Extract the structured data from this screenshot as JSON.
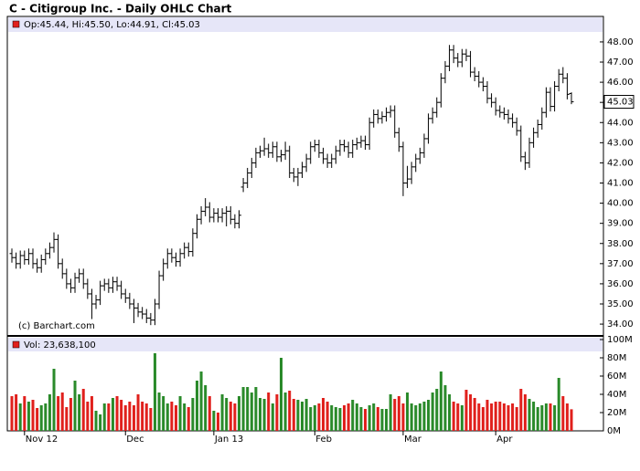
{
  "chart_data": {
    "type": "ohlc",
    "title": "C - Citigroup Inc. - Daily OHLC Chart",
    "legend": "Op:45.44, Hi:45.50, Lo:44.91, Cl:45.03",
    "volume_legend": "Vol: 23,638,100",
    "credit": "(c) Barchart.com",
    "categories": [
      null,
      null,
      null,
      "Nov 12",
      null,
      null,
      null,
      null,
      null,
      null,
      null,
      null,
      null,
      null,
      null,
      null,
      null,
      null,
      null,
      null,
      null,
      null,
      null,
      null,
      null,
      null,
      null,
      "Dec",
      null,
      null,
      null,
      null,
      null,
      null,
      null,
      null,
      null,
      null,
      null,
      null,
      null,
      null,
      null,
      null,
      null,
      null,
      null,
      null,
      "Jan 13",
      null,
      null,
      null,
      null,
      null,
      null,
      null,
      null,
      null,
      null,
      null,
      null,
      null,
      null,
      null,
      null,
      null,
      null,
      null,
      null,
      null,
      null,
      null,
      "Feb",
      null,
      null,
      null,
      null,
      null,
      null,
      null,
      null,
      null,
      null,
      null,
      null,
      null,
      null,
      null,
      null,
      null,
      null,
      null,
      null,
      "Mar",
      null,
      null,
      null,
      null,
      null,
      null,
      null,
      null,
      null,
      null,
      null,
      null,
      null,
      null,
      null,
      null,
      null,
      null,
      null,
      null,
      null,
      "Apr",
      null,
      null,
      null,
      null,
      null,
      null,
      null,
      null,
      null,
      null,
      null,
      null,
      null,
      null,
      null,
      null,
      null,
      null
    ],
    "bars": [
      [
        37.5,
        37.75,
        37.05,
        37.3
      ],
      [
        37.3,
        37.55,
        36.75,
        37.0
      ],
      [
        37.0,
        37.65,
        36.75,
        37.4
      ],
      [
        37.4,
        37.65,
        36.95,
        37.2
      ],
      [
        37.2,
        37.75,
        36.95,
        37.5
      ],
      [
        37.5,
        37.75,
        36.75,
        37.0
      ],
      [
        37.0,
        37.25,
        36.55,
        36.8
      ],
      [
        36.8,
        37.45,
        36.55,
        37.2
      ],
      [
        37.2,
        37.75,
        36.95,
        37.5
      ],
      [
        37.5,
        38.05,
        37.25,
        37.8
      ],
      [
        37.8,
        38.55,
        37.55,
        38.2
      ],
      [
        38.2,
        38.45,
        36.75,
        37.0
      ],
      [
        37.0,
        37.25,
        36.25,
        36.5
      ],
      [
        36.5,
        36.75,
        35.75,
        36.0
      ],
      [
        36.0,
        36.25,
        35.55,
        35.8
      ],
      [
        35.8,
        36.55,
        35.55,
        36.3
      ],
      [
        36.3,
        36.75,
        36.05,
        36.5
      ],
      [
        36.5,
        36.75,
        35.75,
        36.0
      ],
      [
        36.0,
        36.25,
        35.25,
        35.5
      ],
      [
        35.5,
        35.75,
        34.25,
        35.0
      ],
      [
        35.0,
        35.45,
        34.75,
        35.2
      ],
      [
        35.2,
        36.15,
        34.95,
        35.9
      ],
      [
        35.9,
        36.25,
        35.65,
        36.0
      ],
      [
        36.0,
        36.25,
        35.55,
        35.8
      ],
      [
        35.8,
        36.35,
        35.55,
        36.1
      ],
      [
        36.1,
        36.35,
        35.65,
        35.9
      ],
      [
        35.9,
        36.15,
        35.25,
        35.5
      ],
      [
        35.5,
        35.75,
        35.05,
        35.3
      ],
      [
        35.3,
        35.55,
        34.75,
        35.0
      ],
      [
        35.0,
        35.25,
        34.05,
        34.8
      ],
      [
        34.8,
        35.05,
        34.35,
        34.6
      ],
      [
        34.6,
        34.85,
        34.25,
        34.5
      ],
      [
        34.5,
        34.75,
        34.05,
        34.3
      ],
      [
        34.3,
        34.55,
        33.95,
        34.2
      ],
      [
        34.2,
        35.25,
        33.95,
        35.0
      ],
      [
        35.0,
        36.65,
        34.75,
        36.4
      ],
      [
        36.4,
        37.25,
        36.15,
        37.0
      ],
      [
        37.0,
        37.75,
        36.75,
        37.5
      ],
      [
        37.5,
        37.75,
        37.05,
        37.3
      ],
      [
        37.3,
        37.55,
        36.85,
        37.1
      ],
      [
        37.1,
        37.75,
        36.85,
        37.5
      ],
      [
        37.5,
        38.05,
        37.25,
        37.8
      ],
      [
        37.8,
        38.05,
        37.35,
        37.6
      ],
      [
        37.6,
        38.75,
        37.35,
        38.5
      ],
      [
        38.5,
        39.45,
        38.25,
        39.2
      ],
      [
        39.2,
        39.85,
        38.95,
        39.6
      ],
      [
        39.6,
        40.25,
        39.35,
        39.8
      ],
      [
        39.8,
        40.05,
        39.05,
        39.3
      ],
      [
        39.3,
        39.75,
        39.05,
        39.5
      ],
      [
        39.5,
        39.75,
        39.05,
        39.3
      ],
      [
        39.3,
        39.75,
        39.05,
        39.5
      ],
      [
        39.5,
        39.85,
        38.85,
        39.6
      ],
      [
        39.6,
        39.85,
        38.95,
        39.2
      ],
      [
        39.2,
        39.45,
        38.75,
        39.0
      ],
      [
        39.0,
        39.65,
        38.75,
        39.4
      ],
      [
        40.8,
        41.25,
        40.55,
        41.0
      ],
      [
        41.0,
        41.75,
        40.75,
        41.5
      ],
      [
        41.5,
        42.25,
        41.25,
        42.0
      ],
      [
        42.0,
        42.75,
        41.75,
        42.5
      ],
      [
        42.5,
        42.85,
        42.25,
        42.6
      ],
      [
        42.6,
        43.25,
        42.35,
        42.7
      ],
      [
        42.7,
        42.95,
        42.25,
        42.5
      ],
      [
        42.5,
        43.05,
        42.25,
        42.8
      ],
      [
        42.8,
        43.05,
        42.05,
        42.3
      ],
      [
        42.3,
        42.65,
        42.05,
        42.4
      ],
      [
        42.4,
        43.05,
        42.15,
        42.6
      ],
      [
        42.6,
        42.85,
        41.25,
        41.5
      ],
      [
        41.5,
        41.75,
        41.05,
        41.3
      ],
      [
        41.3,
        41.75,
        40.85,
        41.5
      ],
      [
        41.5,
        42.05,
        41.25,
        41.8
      ],
      [
        41.8,
        42.45,
        41.55,
        42.2
      ],
      [
        42.2,
        43.05,
        41.95,
        42.8
      ],
      [
        42.8,
        43.15,
        42.55,
        42.9
      ],
      [
        42.9,
        43.15,
        42.25,
        42.5
      ],
      [
        42.5,
        42.75,
        41.95,
        42.2
      ],
      [
        42.2,
        42.45,
        41.75,
        42.0
      ],
      [
        42.0,
        42.45,
        41.75,
        42.2
      ],
      [
        42.2,
        42.85,
        41.95,
        42.6
      ],
      [
        42.6,
        43.15,
        42.35,
        42.9
      ],
      [
        42.9,
        43.15,
        42.55,
        42.8
      ],
      [
        42.8,
        43.05,
        42.25,
        42.5
      ],
      [
        42.5,
        43.15,
        42.25,
        42.9
      ],
      [
        42.9,
        43.25,
        42.65,
        43.0
      ],
      [
        43.0,
        43.35,
        42.75,
        43.1
      ],
      [
        43.1,
        43.35,
        42.65,
        42.9
      ],
      [
        42.9,
        44.25,
        42.65,
        44.0
      ],
      [
        44.0,
        44.65,
        43.75,
        44.4
      ],
      [
        44.4,
        44.65,
        43.95,
        44.2
      ],
      [
        44.2,
        44.55,
        43.95,
        44.3
      ],
      [
        44.3,
        44.75,
        44.05,
        44.5
      ],
      [
        44.5,
        44.85,
        44.25,
        44.6
      ],
      [
        44.6,
        44.85,
        43.25,
        43.5
      ],
      [
        43.5,
        43.75,
        42.55,
        42.8
      ],
      [
        42.8,
        43.05,
        40.35,
        41.0
      ],
      [
        41.0,
        41.85,
        40.75,
        41.2
      ],
      [
        41.2,
        42.05,
        40.95,
        41.8
      ],
      [
        41.8,
        42.45,
        41.55,
        42.2
      ],
      [
        42.2,
        42.75,
        41.95,
        42.5
      ],
      [
        42.5,
        43.45,
        42.25,
        43.2
      ],
      [
        43.2,
        44.45,
        42.95,
        44.2
      ],
      [
        44.2,
        44.75,
        43.95,
        44.5
      ],
      [
        44.5,
        45.25,
        44.25,
        45.0
      ],
      [
        45.0,
        46.45,
        44.75,
        46.2
      ],
      [
        46.2,
        47.05,
        45.95,
        46.8
      ],
      [
        46.8,
        47.85,
        46.55,
        47.6
      ],
      [
        47.6,
        47.85,
        46.95,
        47.2
      ],
      [
        47.2,
        47.45,
        46.75,
        47.0
      ],
      [
        47.0,
        47.65,
        46.75,
        47.4
      ],
      [
        47.4,
        47.65,
        47.05,
        47.3
      ],
      [
        47.3,
        47.55,
        46.25,
        46.5
      ],
      [
        46.5,
        46.75,
        46.05,
        46.3
      ],
      [
        46.3,
        46.55,
        45.75,
        46.0
      ],
      [
        46.0,
        46.25,
        45.55,
        45.8
      ],
      [
        45.8,
        46.05,
        44.95,
        45.2
      ],
      [
        45.2,
        45.45,
        44.75,
        45.0
      ],
      [
        45.0,
        45.25,
        44.35,
        44.6
      ],
      [
        44.6,
        44.85,
        44.25,
        44.5
      ],
      [
        44.5,
        44.75,
        44.15,
        44.4
      ],
      [
        44.4,
        44.65,
        43.95,
        44.2
      ],
      [
        44.2,
        44.45,
        43.75,
        44.0
      ],
      [
        44.0,
        44.25,
        43.35,
        43.6
      ],
      [
        43.6,
        43.85,
        42.05,
        42.3
      ],
      [
        42.3,
        42.55,
        41.65,
        42.0
      ],
      [
        42.0,
        43.25,
        41.75,
        43.0
      ],
      [
        43.0,
        43.75,
        42.75,
        43.5
      ],
      [
        43.5,
        44.15,
        43.25,
        43.9
      ],
      [
        43.9,
        44.75,
        43.65,
        44.5
      ],
      [
        44.5,
        45.75,
        44.25,
        45.5
      ],
      [
        45.5,
        45.75,
        44.55,
        44.8
      ],
      [
        44.8,
        46.05,
        44.55,
        45.8
      ],
      [
        45.8,
        46.65,
        45.55,
        46.4
      ],
      [
        46.4,
        46.75,
        45.95,
        46.2
      ],
      [
        46.2,
        46.45,
        45.15,
        45.4
      ],
      [
        45.44,
        45.5,
        44.91,
        45.03
      ]
    ],
    "volume": [
      38,
      40,
      30,
      38,
      32,
      34,
      25,
      28,
      30,
      40,
      68,
      38,
      42,
      26,
      36,
      55,
      40,
      46,
      32,
      38,
      22,
      18,
      30,
      30,
      36,
      38,
      34,
      28,
      32,
      28,
      40,
      32,
      30,
      25,
      85,
      42,
      38,
      30,
      32,
      28,
      38,
      30,
      26,
      36,
      55,
      65,
      50,
      38,
      22,
      20,
      40,
      36,
      32,
      30,
      38,
      48,
      48,
      42,
      48,
      36,
      35,
      42,
      30,
      40,
      80,
      42,
      44,
      35,
      34,
      32,
      35,
      26,
      28,
      30,
      36,
      32,
      28,
      26,
      25,
      28,
      30,
      34,
      30,
      26,
      24,
      28,
      30,
      26,
      24,
      24,
      40,
      35,
      38,
      30,
      42,
      30,
      28,
      30,
      32,
      34,
      42,
      46,
      65,
      50,
      40,
      32,
      30,
      28,
      45,
      40,
      36,
      30,
      26,
      34,
      30,
      32,
      32,
      30,
      28,
      30,
      26,
      46,
      40,
      35,
      32,
      26,
      28,
      30,
      30,
      28,
      58,
      38,
      30,
      23.6381
    ],
    "color": "#000000",
    "up_color": "#2a8a2a",
    "down_color": "#e0201c",
    "ylim": [
      33.46,
      48.45
    ],
    "yticks": [
      {
        "value": 34,
        "label": "34.00"
      },
      {
        "value": 35,
        "label": "35.00"
      },
      {
        "value": 36,
        "label": "36.00"
      },
      {
        "value": 37,
        "label": "37.00"
      },
      {
        "value": 38,
        "label": "38.00"
      },
      {
        "value": 39,
        "label": "39.00"
      },
      {
        "value": 40,
        "label": "40.00"
      },
      {
        "value": 41,
        "label": "41.00"
      },
      {
        "value": 42,
        "label": "42.00"
      },
      {
        "value": 43,
        "label": "43.00"
      },
      {
        "value": 44,
        "label": "44.00"
      },
      {
        "value": 45,
        "label": "45.00"
      },
      {
        "value": 46,
        "label": "46.00"
      },
      {
        "value": 47,
        "label": "47.00"
      },
      {
        "value": 48,
        "label": "48.00"
      }
    ],
    "y2lim": [
      0,
      100
    ],
    "y2ticks": [
      {
        "value": 0,
        "label": "0M"
      },
      {
        "value": 20,
        "label": "20M"
      },
      {
        "value": 40,
        "label": "40M"
      },
      {
        "value": 60,
        "label": "60M"
      },
      {
        "value": 80,
        "label": "80M"
      },
      {
        "value": 100,
        "label": "100M"
      }
    ]
  }
}
